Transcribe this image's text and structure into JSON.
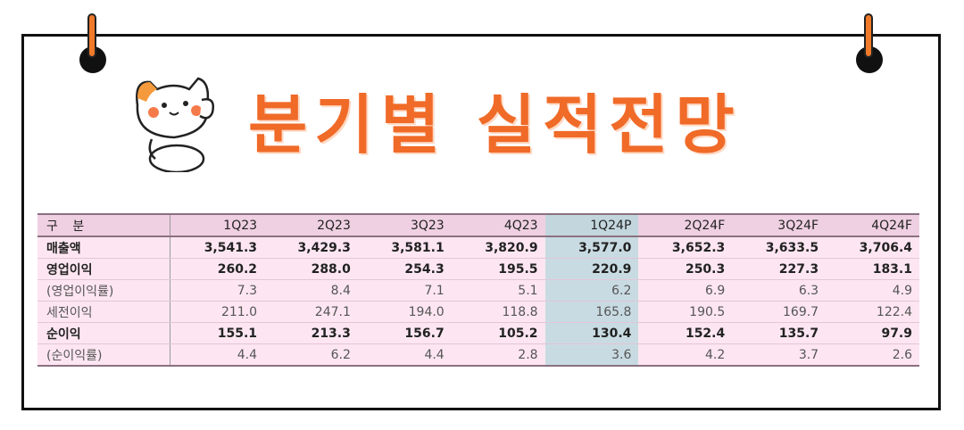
{
  "title": "분기별 실적전망",
  "table": {
    "header_label": "구 분",
    "columns": [
      "1Q23",
      "2Q23",
      "3Q23",
      "4Q23",
      "1Q24P",
      "2Q24F",
      "3Q24F",
      "4Q24F"
    ],
    "rows": [
      {
        "label": "매출액",
        "values": [
          "3,541.3",
          "3,429.3",
          "3,581.1",
          "3,820.9",
          "3,577.0",
          "3,652.3",
          "3,633.5",
          "3,706.4"
        ],
        "style": "bold"
      },
      {
        "label": "영업이익",
        "values": [
          "260.2",
          "288.0",
          "254.3",
          "195.5",
          "220.9",
          "250.3",
          "227.3",
          "183.1"
        ],
        "style": "bold"
      },
      {
        "label": "(영업이익률)",
        "values": [
          "7.3",
          "8.4",
          "7.1",
          "5.1",
          "6.2",
          "6.9",
          "6.3",
          "4.9"
        ],
        "style": "sub"
      },
      {
        "label": "세전이익",
        "values": [
          "211.0",
          "247.1",
          "194.0",
          "118.8",
          "165.8",
          "190.5",
          "169.7",
          "122.4"
        ],
        "style": "sub"
      },
      {
        "label": "순이익",
        "values": [
          "155.1",
          "213.3",
          "156.7",
          "105.2",
          "130.4",
          "152.4",
          "135.7",
          "97.9"
        ],
        "style": "bold"
      },
      {
        "label": "(순이익률)",
        "values": [
          "4.4",
          "6.2",
          "4.4",
          "2.8",
          "3.6",
          "4.2",
          "3.7",
          "2.6"
        ],
        "style": "sub"
      }
    ],
    "highlight_column": 4,
    "colors": {
      "row_bg": "#fde6f1",
      "header_bg": "#efd0e2",
      "highlight_bg": "#c9dbe2",
      "title": "#f06a28"
    }
  }
}
